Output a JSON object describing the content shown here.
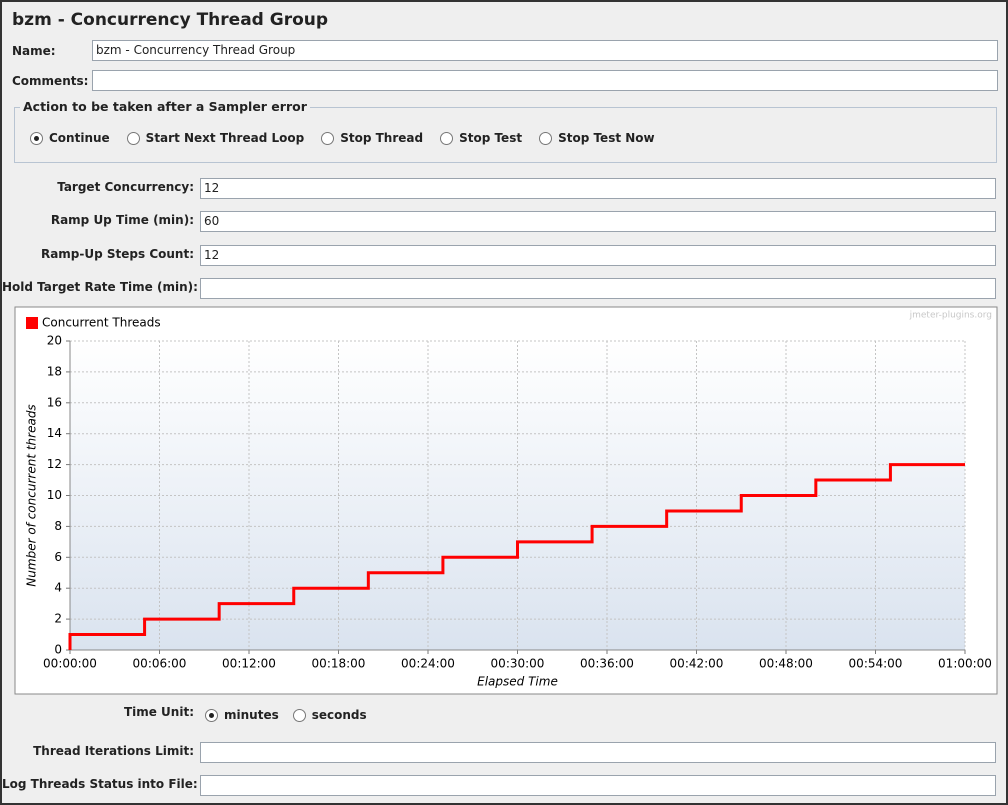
{
  "header": {
    "title": "bzm - Concurrency Thread Group"
  },
  "name_field": {
    "label": "Name:",
    "value": "bzm - Concurrency Thread Group"
  },
  "comments_field": {
    "label": "Comments:"
  },
  "sampler_error": {
    "legend": "Action to be taken after a Sampler error",
    "options": [
      "Continue",
      "Start Next Thread Loop",
      "Stop Thread",
      "Stop Test",
      "Stop Test Now"
    ],
    "selected": 0
  },
  "settings": [
    {
      "label": "Target Concurrency:",
      "value": 12
    },
    {
      "label": "Ramp Up Time (min):",
      "value": 60
    },
    {
      "label": "Ramp-Up Steps Count:",
      "value": 12
    },
    {
      "label": "Hold Target Rate Time (min):"
    }
  ],
  "chart_data": {
    "type": "line",
    "watermark": "jmeter-plugins.org",
    "xlabel": "Elapsed Time",
    "ylabel": "Number of concurrent threads",
    "x": [
      0,
      0,
      5,
      5,
      10,
      10,
      15,
      15,
      20,
      20,
      25,
      25,
      30,
      30,
      35,
      35,
      40,
      40,
      45,
      45,
      50,
      50,
      55,
      55,
      60
    ],
    "series": [
      {
        "name": "Concurrent Threads",
        "color": "#ff0000",
        "values": [
          0,
          1,
          1,
          2,
          2,
          3,
          3,
          4,
          4,
          5,
          5,
          6,
          6,
          7,
          7,
          8,
          8,
          9,
          9,
          10,
          10,
          11,
          11,
          12,
          12
        ]
      }
    ],
    "xlim": [
      0,
      60
    ],
    "ylim": [
      0,
      20
    ],
    "xticks": [
      {
        "value": 0,
        "label": "00:00:00"
      },
      {
        "value": 6,
        "label": "00:06:00"
      },
      {
        "value": 12,
        "label": "00:12:00"
      },
      {
        "value": 18,
        "label": "00:18:00"
      },
      {
        "value": 24,
        "label": "00:24:00"
      },
      {
        "value": 30,
        "label": "00:30:00"
      },
      {
        "value": 36,
        "label": "00:36:00"
      },
      {
        "value": 42,
        "label": "00:42:00"
      },
      {
        "value": 48,
        "label": "00:48:00"
      },
      {
        "value": 54,
        "label": "00:54:00"
      },
      {
        "value": 60,
        "label": "01:00:00"
      }
    ],
    "yticks": [
      0,
      2,
      4,
      6,
      8,
      10,
      12,
      14,
      16,
      18,
      20
    ],
    "grid": true,
    "legend": "top-left"
  },
  "time_unit": {
    "label": "Time Unit:",
    "options": [
      "minutes",
      "seconds"
    ],
    "selected": 0
  },
  "bottom_fields": [
    {
      "label": "Thread Iterations Limit:"
    },
    {
      "label": "Log Threads Status into File:"
    }
  ]
}
